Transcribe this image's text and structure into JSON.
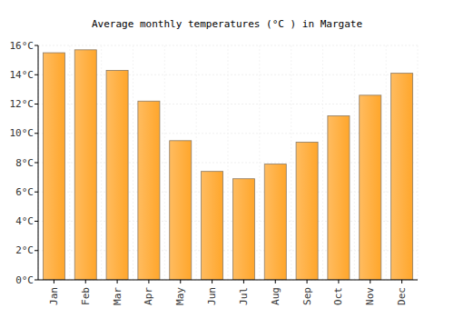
{
  "chart_data": {
    "type": "bar",
    "title": "Average monthly temperatures (°C ) in Margate",
    "categories": [
      "Jan",
      "Feb",
      "Mar",
      "Apr",
      "May",
      "Jun",
      "Jul",
      "Aug",
      "Sep",
      "Oct",
      "Nov",
      "Dec"
    ],
    "values": [
      15.5,
      15.7,
      14.3,
      12.2,
      9.5,
      7.4,
      6.9,
      7.9,
      9.4,
      11.2,
      12.6,
      14.1
    ],
    "color": "#ffa62b",
    "ylim": [
      0,
      16
    ],
    "yticks": [
      {
        "value": 0,
        "label": "0°C"
      },
      {
        "value": 2,
        "label": "2°C"
      },
      {
        "value": 4,
        "label": "4°C"
      },
      {
        "value": 6,
        "label": "6°C"
      },
      {
        "value": 8,
        "label": "8°C"
      },
      {
        "value": 10,
        "label": "10°C"
      },
      {
        "value": 12,
        "label": "12°C"
      },
      {
        "value": 14,
        "label": "14°C"
      },
      {
        "value": 16,
        "label": "16°C"
      }
    ],
    "grid": true
  }
}
